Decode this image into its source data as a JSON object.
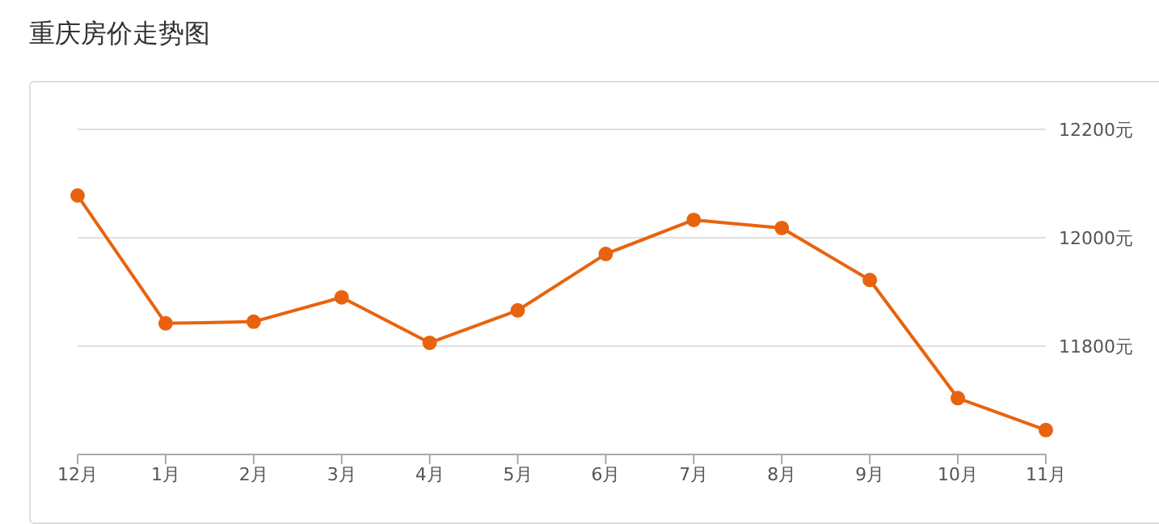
{
  "chart_data": {
    "type": "line",
    "title": "重庆房价走势图",
    "categories": [
      "12月",
      "1月",
      "2月",
      "3月",
      "4月",
      "5月",
      "6月",
      "7月",
      "8月",
      "9月",
      "10月",
      "11月"
    ],
    "values": [
      12078,
      11842,
      11845,
      11890,
      11806,
      11866,
      11970,
      12033,
      12018,
      11922,
      11704,
      11645
    ],
    "color": "#e8630f",
    "ylim": [
      11600,
      12200
    ],
    "yticks": [
      {
        "value": 11800,
        "label": "11800元"
      },
      {
        "value": 12000,
        "label": "12000元"
      },
      {
        "value": 12200,
        "label": "12200元"
      }
    ],
    "grid": "y",
    "marker": "circle",
    "line_style": "solid"
  }
}
